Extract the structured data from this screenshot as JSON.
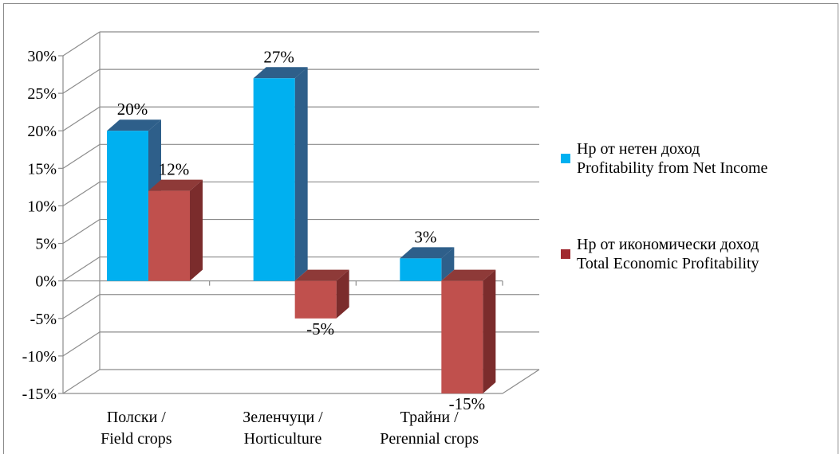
{
  "chart_data": {
    "type": "bar",
    "categories": [
      "Полски /\nField crops",
      "Зеленчуци /\nHorticulture",
      "Трайни /\nPerennial crops"
    ],
    "series": [
      {
        "name": "Нр от нетен доход\nProfitability from Net Income",
        "values": [
          20,
          27,
          3
        ],
        "labels": [
          "20%",
          "27%",
          "3%"
        ],
        "color": "#00B0F0",
        "side_color": "#2E5F8A",
        "top_color": "#2E5F8A"
      },
      {
        "name": "Нр от икономически доход\nTotal Economic Profitability",
        "values": [
          12,
          -5,
          -15
        ],
        "labels": [
          "12%",
          "-5%",
          "-15%"
        ],
        "color": "#C0504D",
        "side_color": "#7B2C2C",
        "top_color": "#8E3A38"
      }
    ],
    "y_ticks": [
      "30%",
      "25%",
      "20%",
      "15%",
      "10%",
      "5%",
      "0%",
      "-5%",
      "-10%",
      "-15%"
    ],
    "ylim": [
      -15,
      30
    ],
    "grid": true,
    "style": "3d-clustered-column",
    "legend_position": "right"
  }
}
